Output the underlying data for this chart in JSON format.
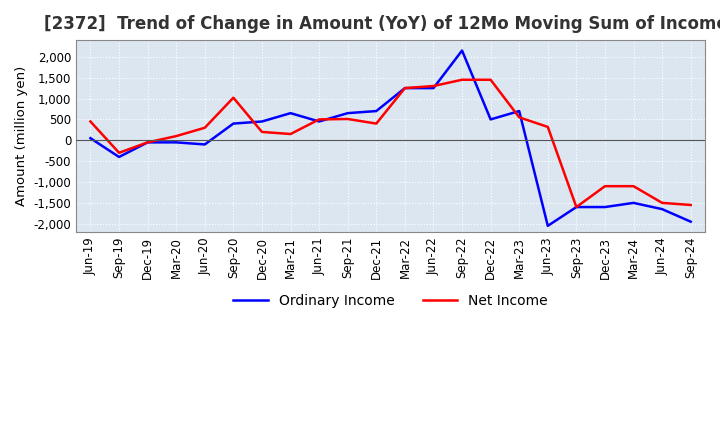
{
  "title": "[2372]  Trend of Change in Amount (YoY) of 12Mo Moving Sum of Incomes",
  "ylabel": "Amount (million yen)",
  "x_labels": [
    "Jun-19",
    "Sep-19",
    "Dec-19",
    "Mar-20",
    "Jun-20",
    "Sep-20",
    "Dec-20",
    "Mar-21",
    "Jun-21",
    "Sep-21",
    "Dec-21",
    "Mar-22",
    "Jun-22",
    "Sep-22",
    "Dec-22",
    "Mar-23",
    "Jun-23",
    "Sep-23",
    "Dec-23",
    "Mar-24",
    "Jun-24",
    "Sep-24"
  ],
  "ordinary_income": [
    50,
    -400,
    -50,
    -50,
    -100,
    400,
    450,
    650,
    450,
    650,
    700,
    1250,
    1250,
    2150,
    500,
    700,
    -2050,
    -1600,
    -1600,
    -1500,
    -1650,
    -1950
  ],
  "net_income": [
    450,
    -300,
    -50,
    100,
    300,
    1020,
    200,
    150,
    500,
    510,
    400,
    1250,
    1300,
    1450,
    1450,
    550,
    320,
    -1600,
    -1100,
    -1100,
    -1500,
    -1550
  ],
  "ordinary_color": "#0000ff",
  "net_color": "#ff0000",
  "ylim": [
    -2200,
    2400
  ],
  "yticks": [
    -2000,
    -1500,
    -1000,
    -500,
    0,
    500,
    1000,
    1500,
    2000
  ],
  "background_color": "#dce6f1",
  "plot_bg_color": "#dce6f1",
  "grid_color": "#ffffff",
  "title_fontsize": 12,
  "legend_fontsize": 10,
  "tick_fontsize": 8.5
}
